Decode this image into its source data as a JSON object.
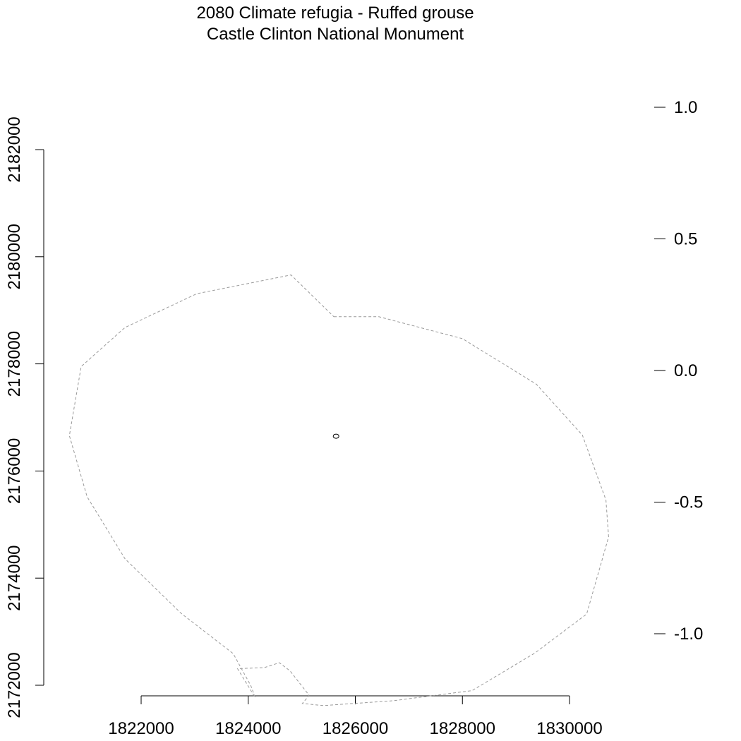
{
  "map": {
    "title": "2080 Climate refugia - Ruffed grouse",
    "subtitle": "Castle Clinton National Monument",
    "colors": {
      "boundary": "#9a9a9a",
      "site": "#000000",
      "axes": "#000000",
      "background": "#ffffff"
    },
    "x_axis": {
      "min": 1820000,
      "max": 1830000,
      "ticks": [
        1822000,
        1824000,
        1826000,
        1828000,
        1830000
      ],
      "tick_labels": [
        "1822000",
        "1824000",
        "1826000",
        "1828000",
        "1830000"
      ]
    },
    "y_axis": {
      "min": 2172000,
      "max": 2182000,
      "ticks": [
        2172000,
        2174000,
        2176000,
        2178000,
        2180000,
        2182000
      ],
      "tick_labels": [
        "2172000",
        "2174000",
        "2176000",
        "2178000",
        "2180000",
        "2182000"
      ]
    },
    "legend_scale": {
      "min": -1.25,
      "max": 1.1,
      "ticks": [
        1.0,
        0.5,
        0.0,
        -0.5,
        -1.0
      ],
      "tick_labels": [
        "1.0",
        "0.5",
        "0.0",
        "-0.5",
        "-1.0"
      ]
    },
    "boundary": {
      "style": "dashed",
      "x": [
        1825600,
        1826440,
        1828000,
        1829380,
        1830240,
        1830680,
        1830730,
        1830320,
        1829350,
        1828180,
        1826700,
        1825400,
        1825010,
        1825140,
        1824780,
        1824580,
        1824300,
        1823800,
        1824130,
        1824050,
        1823720,
        1822750,
        1821700,
        1820990,
        1820660,
        1820880,
        1821700,
        1823040,
        1824800
      ],
      "y": [
        2178880,
        2178880,
        2178470,
        2177620,
        2176670,
        2175460,
        2174770,
        2173330,
        2172600,
        2171900,
        2171710,
        2171620,
        2171660,
        2171810,
        2172270,
        2172420,
        2172330,
        2172310,
        2171770,
        2171990,
        2172590,
        2173340,
        2174360,
        2175520,
        2176660,
        2177950,
        2178680,
        2179310,
        2179660
      ]
    },
    "site": {
      "x": 1825640,
      "y": 2176650
    }
  }
}
